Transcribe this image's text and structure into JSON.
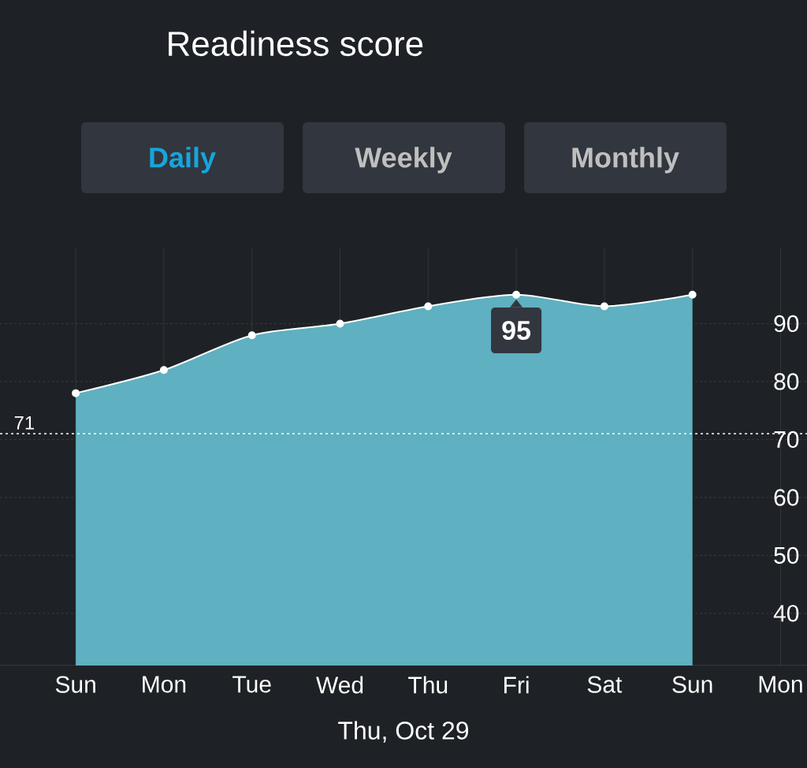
{
  "chart_data": {
    "type": "area",
    "title": "Readiness score",
    "xlabel": "Thu, Oct 29",
    "categories": [
      "Sun",
      "Mon",
      "Tue",
      "Wed",
      "Thu",
      "Fri",
      "Sat",
      "Sun",
      "Mon"
    ],
    "series": [
      {
        "color": "#5fb0c0",
        "values": [
          78,
          82,
          88,
          90,
          93,
          95,
          93,
          95,
          null
        ]
      }
    ],
    "ylim": [
      31,
      103
    ],
    "yticks": [
      40,
      50,
      60,
      70,
      80,
      90
    ],
    "grid": true,
    "marker": "circle",
    "ref_lines": [
      {
        "axis": "y",
        "value": 71,
        "label": "71",
        "color": "#ffffff",
        "line_style": "dotted"
      }
    ],
    "annotations": [
      "Daily",
      "Weekly",
      "Monthly",
      {
        "text": "95",
        "x": "Fri",
        "y": 95
      }
    ]
  }
}
